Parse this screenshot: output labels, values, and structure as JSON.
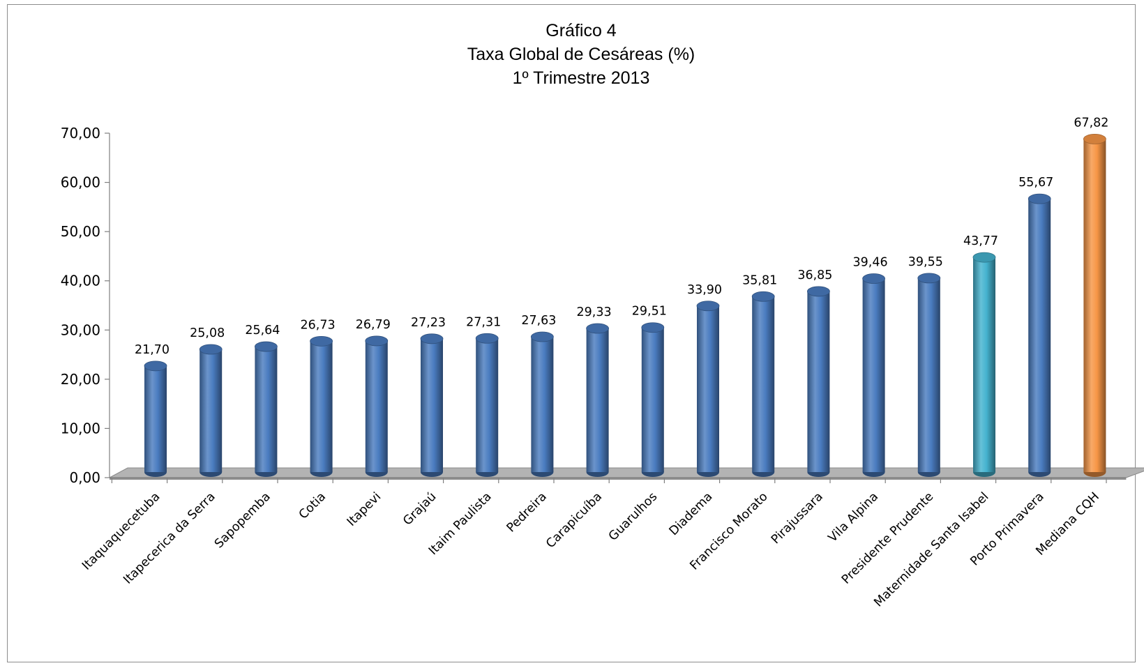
{
  "chart_data": {
    "type": "bar",
    "title_lines": [
      "Gráfico 4",
      "Taxa Global de Cesáreas (%)",
      "1º Trimestre 2013"
    ],
    "xlabel": "",
    "ylabel": "",
    "ylim": [
      0,
      70
    ],
    "yticks": [
      0,
      10,
      20,
      30,
      40,
      50,
      60,
      70
    ],
    "ytick_labels": [
      "0,00",
      "10,00",
      "20,00",
      "30,00",
      "40,00",
      "50,00",
      "60,00",
      "70,00"
    ],
    "grid": false,
    "legend": "none",
    "style": "3d-cylinder",
    "categories": [
      "Itaquaquecetuba",
      "Itapecerica da Serra",
      "Sapopemba",
      "Cotia",
      "Itapevi",
      "Grajaú",
      "Itaim Paulista",
      "Pedreira",
      "Carapicuíba",
      "Guarulhos",
      "Diadema",
      "Francisco Morato",
      "Pirajussara",
      "Vila Alpina",
      "Presidente Prudente",
      "Maternidade Santa Isabel",
      "Porto Primavera",
      "Mediana CQH"
    ],
    "values": [
      21.7,
      25.08,
      25.64,
      26.73,
      26.79,
      27.23,
      27.31,
      27.63,
      29.33,
      29.51,
      33.9,
      35.81,
      36.85,
      39.46,
      39.55,
      43.77,
      55.67,
      67.82
    ],
    "value_labels": [
      "21,70",
      "25,08",
      "25,64",
      "26,73",
      "26,79",
      "27,23",
      "27,31",
      "27,63",
      "29,33",
      "29,51",
      "33,90",
      "35,81",
      "36,85",
      "39,46",
      "39,55",
      "43,77",
      "55,67",
      "67,82"
    ],
    "bar_colors": [
      "#4a7cc0",
      "#4a7cc0",
      "#4a7cc0",
      "#4a7cc0",
      "#4a7cc0",
      "#4a7cc0",
      "#4a7cc0",
      "#4a7cc0",
      "#4a7cc0",
      "#4a7cc0",
      "#4a7cc0",
      "#4a7cc0",
      "#4a7cc0",
      "#4a7cc0",
      "#4a7cc0",
      "#45b3cf",
      "#4a7cc0",
      "#f79646"
    ],
    "floor_color": "#b3b3b3"
  }
}
